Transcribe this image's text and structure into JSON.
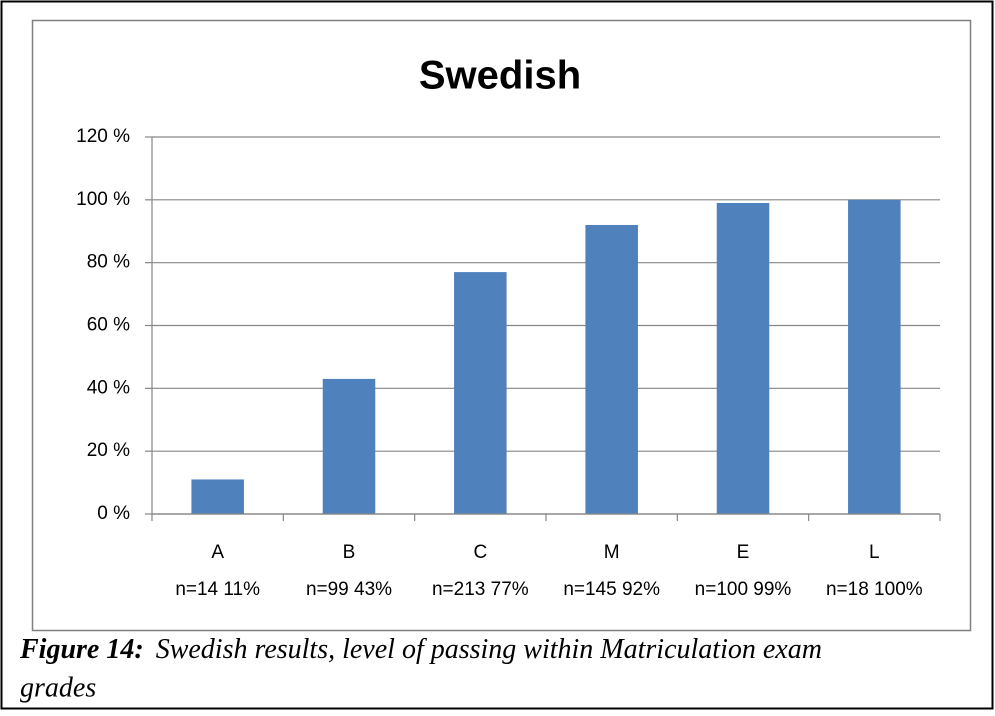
{
  "chart_data": {
    "type": "bar",
    "title": "Swedish",
    "categories": [
      [
        "A",
        "n=14 11%"
      ],
      [
        "B",
        "n=99 43%"
      ],
      [
        "C",
        "n=213 77%"
      ],
      [
        "M",
        "n=145 92%"
      ],
      [
        "E",
        "n=100 99%"
      ],
      [
        "L",
        "n=18 100%"
      ]
    ],
    "values": [
      11,
      43,
      77,
      92,
      99,
      100
    ],
    "color": "#4f81bd",
    "ylim": [
      0,
      120
    ],
    "yticks": [
      {
        "value": 0,
        "label": "0 %"
      },
      {
        "value": 20,
        "label": "20 %"
      },
      {
        "value": 40,
        "label": "40 %"
      },
      {
        "value": 60,
        "label": "60 %"
      },
      {
        "value": 80,
        "label": "80 %"
      },
      {
        "value": 100,
        "label": "100 %"
      },
      {
        "value": 120,
        "label": "120 %"
      }
    ],
    "grid": true
  },
  "caption": {
    "label": "Figure 14:",
    "text": "Swedish results, level of passing within Matriculation exam",
    "text2": "grades"
  }
}
